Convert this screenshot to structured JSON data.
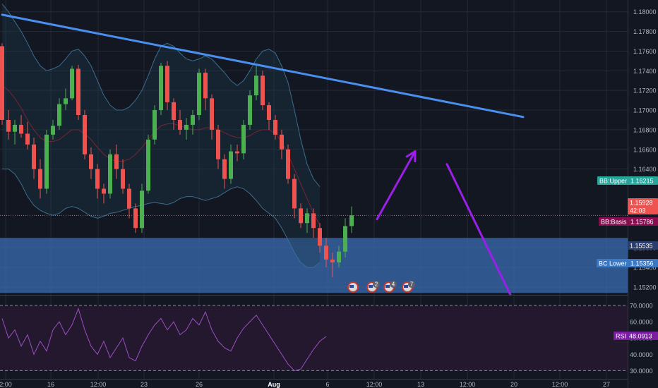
{
  "colors": {
    "background": "#131722",
    "grid": "#252a36",
    "bull": "#4caf50",
    "bear": "#ef5350",
    "bollinger": "#3b6e8f",
    "basis": "#7a2434",
    "trendline": "#4a8ff0",
    "arrow": "#9b1fe8",
    "zone": "#3c6fb8",
    "rsi": "#9b4fc5",
    "rsi_panel": "#24182e",
    "badge_upper": "#26a69a",
    "badge_basis": "#880e4f",
    "badge_lower": "#3a78c4",
    "badge_price": "#ef5350",
    "badge_rsi": "#7b1fa2"
  },
  "chart_data": {
    "type": "candlestick",
    "symbol_timeframe": "4h",
    "price_axis": {
      "ylim": [
        1.1512,
        1.1812
      ],
      "ticks": [
        "1.18000",
        "1.17800",
        "1.17600",
        "1.17400",
        "1.17200",
        "1.17000",
        "1.16800",
        "1.16600",
        "1.16400",
        "1.15600",
        "1.15400",
        "1.15200"
      ]
    },
    "rsi_axis": {
      "ylim": [
        25,
        76
      ],
      "ticks": [
        "70.0000",
        "60.0000",
        "50.0000",
        "40.0000",
        "30.0000"
      ],
      "bands": [
        70,
        30
      ]
    },
    "time_axis": {
      "labels": [
        "2:00",
        "16",
        "12:00",
        "23",
        "26",
        "Aug",
        "6",
        "12:00",
        "13",
        "12:00",
        "20",
        "12:00",
        "27"
      ],
      "highlight": "Aug"
    },
    "badges": {
      "bb_upper": {
        "label": "BB:Upper",
        "value": "1.16215"
      },
      "price": {
        "value": "1.15928"
      },
      "countdown": {
        "value": "42:03"
      },
      "bb_basis": {
        "label": "BB:Basis",
        "value": "1.15786"
      },
      "price2": {
        "value": "1.15535"
      },
      "bb_lower": {
        "label": "BC Lower",
        "value": "1.15356"
      },
      "rsi": {
        "label": "RSI",
        "value": "48.0913"
      }
    },
    "events": [
      "2",
      "4",
      "7"
    ],
    "candles": [
      [
        1.1765,
        1.1768,
        1.1685,
        1.169
      ],
      [
        1.169,
        1.17,
        1.167,
        1.1678
      ],
      [
        1.1678,
        1.169,
        1.1665,
        1.1685
      ],
      [
        1.1685,
        1.1695,
        1.1672,
        1.1676
      ],
      [
        1.1676,
        1.1688,
        1.166,
        1.1665
      ],
      [
        1.1665,
        1.1672,
        1.163,
        1.164
      ],
      [
        1.164,
        1.165,
        1.161,
        1.162
      ],
      [
        1.162,
        1.168,
        1.1615,
        1.1675
      ],
      [
        1.1675,
        1.169,
        1.167,
        1.1684
      ],
      [
        1.1684,
        1.1712,
        1.168,
        1.1706
      ],
      [
        1.1706,
        1.1722,
        1.17,
        1.1712
      ],
      [
        1.1712,
        1.1745,
        1.171,
        1.1742
      ],
      [
        1.1742,
        1.1746,
        1.169,
        1.1695
      ],
      [
        1.1695,
        1.17,
        1.165,
        1.1655
      ],
      [
        1.1655,
        1.1662,
        1.163,
        1.164
      ],
      [
        1.164,
        1.1645,
        1.161,
        1.162
      ],
      [
        1.162,
        1.1625,
        1.1605,
        1.1615
      ],
      [
        1.1615,
        1.166,
        1.161,
        1.1655
      ],
      [
        1.1655,
        1.1665,
        1.163,
        1.164
      ],
      [
        1.164,
        1.165,
        1.1615,
        1.162
      ],
      [
        1.162,
        1.1625,
        1.159,
        1.16
      ],
      [
        1.16,
        1.1605,
        1.1575,
        1.158
      ],
      [
        1.158,
        1.1625,
        1.1575,
        1.1618
      ],
      [
        1.1618,
        1.1675,
        1.1615,
        1.167
      ],
      [
        1.167,
        1.1705,
        1.1665,
        1.17
      ],
      [
        1.17,
        1.1748,
        1.1695,
        1.1745
      ],
      [
        1.1745,
        1.175,
        1.17,
        1.1708
      ],
      [
        1.1708,
        1.1712,
        1.168,
        1.169
      ],
      [
        1.169,
        1.17,
        1.1675,
        1.168
      ],
      [
        1.168,
        1.1692,
        1.167,
        1.1685
      ],
      [
        1.1685,
        1.17,
        1.1675,
        1.1695
      ],
      [
        1.1695,
        1.1742,
        1.169,
        1.1738
      ],
      [
        1.1738,
        1.1742,
        1.17,
        1.1712
      ],
      [
        1.1712,
        1.1716,
        1.167,
        1.168
      ],
      [
        1.168,
        1.1685,
        1.164,
        1.165
      ],
      [
        1.165,
        1.1655,
        1.162,
        1.163
      ],
      [
        1.163,
        1.1665,
        1.1625,
        1.1658
      ],
      [
        1.1658,
        1.1665,
        1.1648,
        1.1656
      ],
      [
        1.1656,
        1.169,
        1.165,
        1.1685
      ],
      [
        1.1685,
        1.172,
        1.168,
        1.1715
      ],
      [
        1.1715,
        1.1745,
        1.171,
        1.1735
      ],
      [
        1.1735,
        1.174,
        1.17,
        1.1705
      ],
      [
        1.1705,
        1.1708,
        1.168,
        1.169
      ],
      [
        1.169,
        1.1695,
        1.167,
        1.1675
      ],
      [
        1.1675,
        1.168,
        1.165,
        1.166
      ],
      [
        1.166,
        1.1665,
        1.1625,
        1.163
      ],
      [
        1.163,
        1.1635,
        1.159,
        1.16
      ],
      [
        1.16,
        1.1605,
        1.158,
        1.1585
      ],
      [
        1.1585,
        1.16,
        1.1575,
        1.1595
      ],
      [
        1.1595,
        1.16,
        1.157,
        1.158
      ],
      [
        1.158,
        1.1585,
        1.1555,
        1.1562
      ],
      [
        1.1562,
        1.157,
        1.154,
        1.1548
      ],
      [
        1.1548,
        1.1555,
        1.153,
        1.1545
      ],
      [
        1.1545,
        1.1562,
        1.154,
        1.1556
      ],
      [
        1.1556,
        1.159,
        1.155,
        1.1582
      ],
      [
        1.1582,
        1.1602,
        1.1575,
        1.1593
      ]
    ],
    "bollinger": {
      "upper": [
        1.1808,
        1.18,
        1.179,
        1.178,
        1.1768,
        1.1755,
        1.1745,
        1.174,
        1.1742,
        1.1745,
        1.1752,
        1.176,
        1.1762,
        1.1755,
        1.1745,
        1.173,
        1.1715,
        1.1705,
        1.17,
        1.17,
        1.1703,
        1.171,
        1.172,
        1.1735,
        1.1752,
        1.1765,
        1.1768,
        1.1765,
        1.1758,
        1.1752,
        1.175,
        1.1752,
        1.1755,
        1.1752,
        1.1745,
        1.1738,
        1.173,
        1.1725,
        1.173,
        1.174,
        1.1752,
        1.176,
        1.1762,
        1.1758,
        1.1745,
        1.1728,
        1.17,
        1.167,
        1.1645,
        1.163,
        1.1622
      ],
      "basis": [
        1.1725,
        1.172,
        1.1712,
        1.1702,
        1.169,
        1.168,
        1.1672,
        1.1668,
        1.1668,
        1.167,
        1.1675,
        1.168,
        1.168,
        1.1676,
        1.167,
        1.1662,
        1.1655,
        1.165,
        1.1648,
        1.1648,
        1.165,
        1.1655,
        1.1662,
        1.167,
        1.1678,
        1.1684,
        1.1686,
        1.1686,
        1.1684,
        1.1682,
        1.168,
        1.168,
        1.1682,
        1.1682,
        1.168,
        1.1677,
        1.1674,
        1.1672,
        1.1672,
        1.1674,
        1.1678,
        1.168,
        1.168,
        1.1676,
        1.1668,
        1.1655,
        1.164,
        1.1625,
        1.161,
        1.1595,
        1.1583
      ],
      "lower": [
        1.164,
        1.164,
        1.1635,
        1.1625,
        1.1612,
        1.1603,
        1.1598,
        1.1595,
        1.1593,
        1.1595,
        1.16,
        1.1602,
        1.16,
        1.1596,
        1.1592,
        1.159,
        1.1592,
        1.1595,
        1.1596,
        1.1598,
        1.16,
        1.1602,
        1.1603,
        1.1605,
        1.1606,
        1.1605,
        1.1604,
        1.1606,
        1.161,
        1.1612,
        1.1612,
        1.161,
        1.1608,
        1.161,
        1.1612,
        1.1616,
        1.162,
        1.1622,
        1.162,
        1.1615,
        1.1608,
        1.16,
        1.1595,
        1.159,
        1.158,
        1.1568,
        1.1555,
        1.1545,
        1.154,
        1.154,
        1.1545
      ]
    },
    "trendline": [
      [
        0,
        1.1797
      ],
      [
        82,
        1.1693
      ]
    ],
    "demand_zone": [
      1.1514,
      1.157
    ],
    "projection_arrows": [
      {
        "from": [
          59,
          1.1589
        ],
        "to": [
          65,
          1.1658
        ],
        "head": true
      },
      {
        "from": [
          70,
          1.1645
        ],
        "to": [
          80,
          1.1512
        ],
        "head": false
      }
    ],
    "rsi": [
      62,
      50,
      55,
      45,
      52,
      40,
      48,
      42,
      55,
      60,
      52,
      58,
      68,
      55,
      45,
      40,
      48,
      38,
      44,
      50,
      38,
      36,
      45,
      52,
      58,
      62,
      55,
      60,
      52,
      55,
      62,
      58,
      66,
      55,
      48,
      44,
      42,
      50,
      56,
      60,
      64,
      58,
      52,
      46,
      40,
      34,
      30,
      31,
      37,
      43,
      48,
      51
    ]
  }
}
